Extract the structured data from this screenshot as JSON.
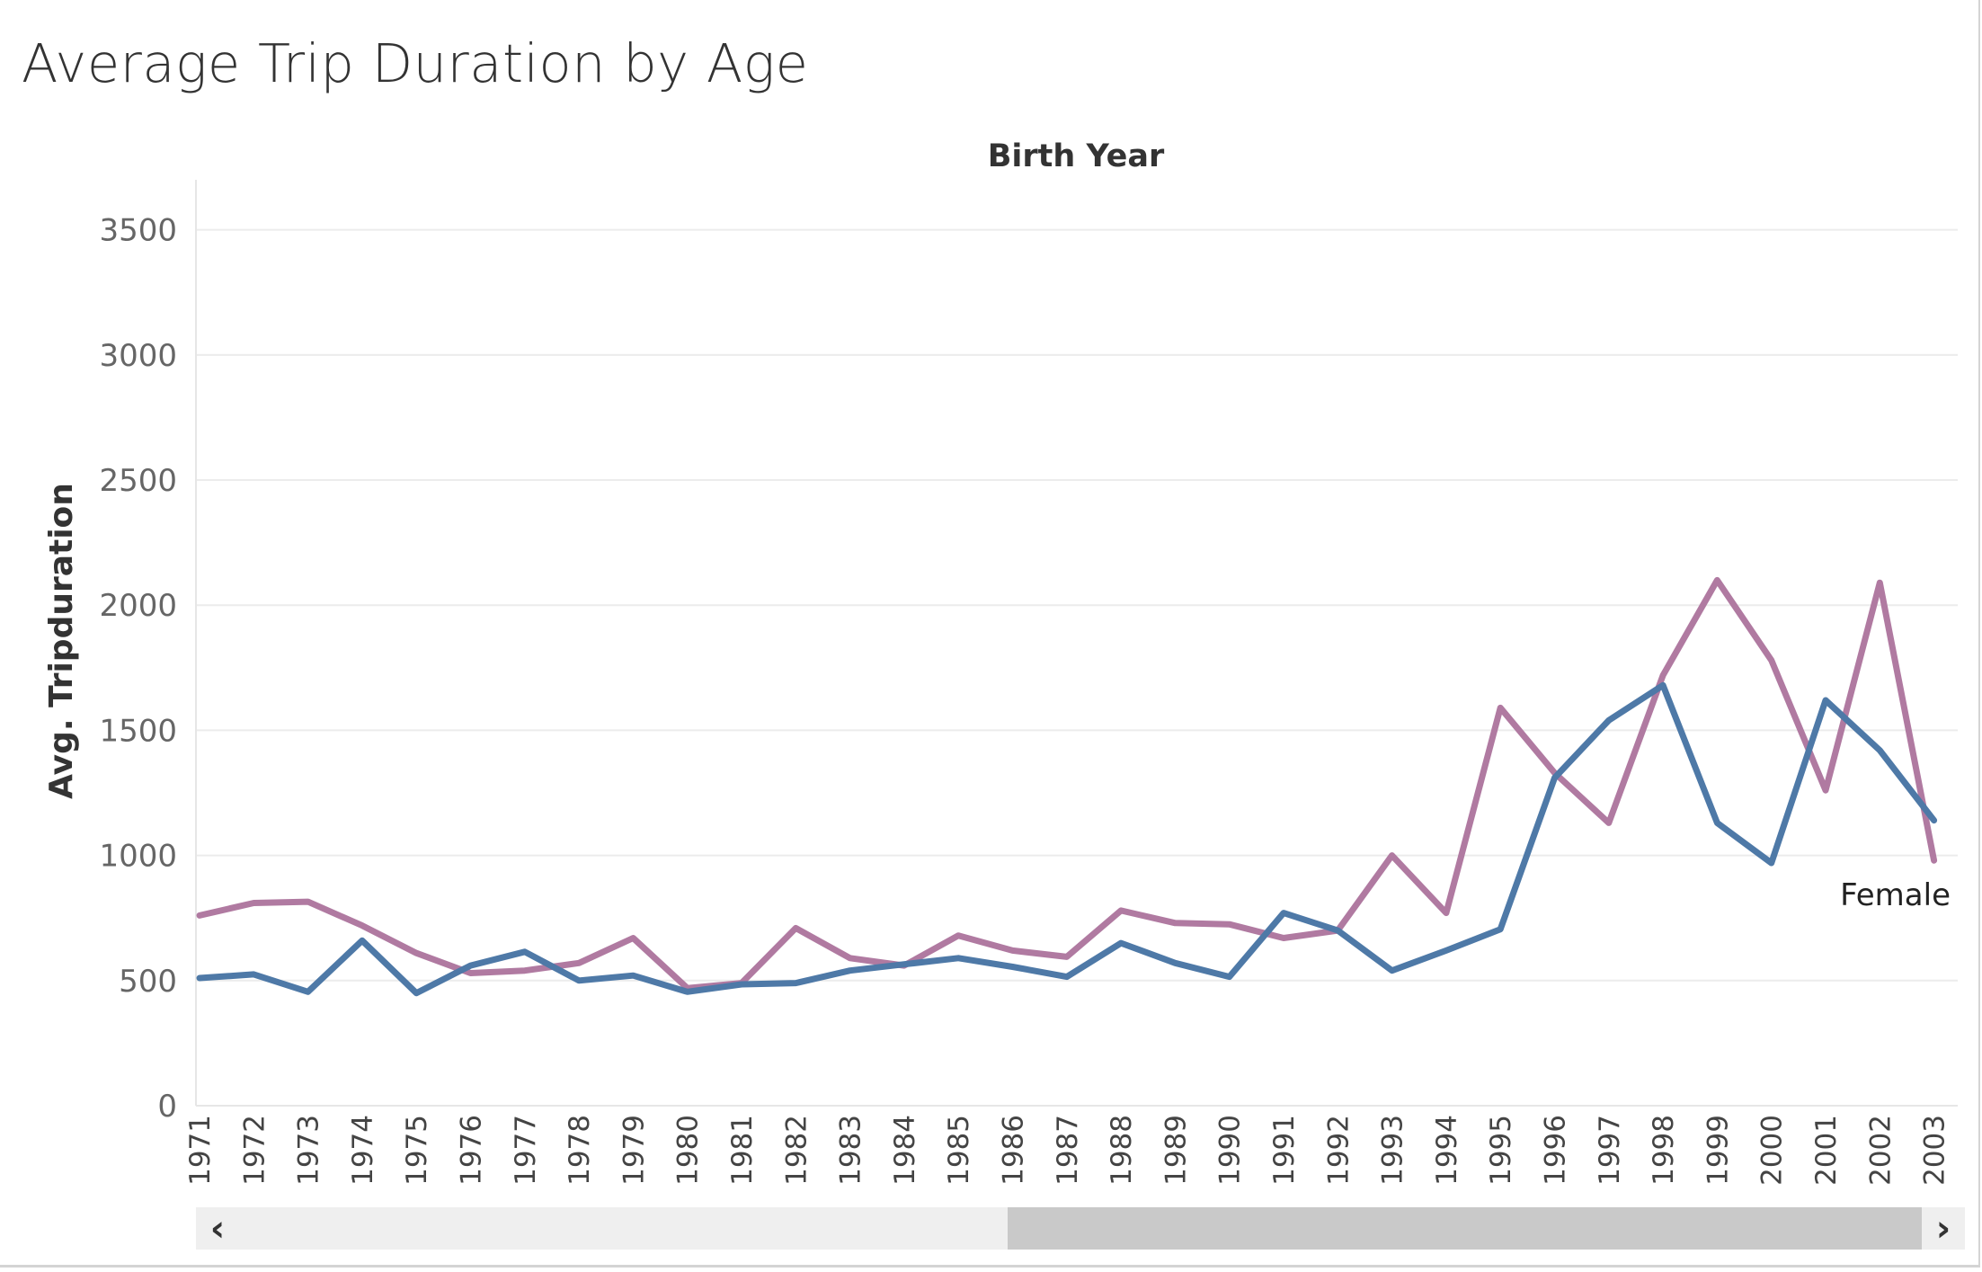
{
  "chart_data": {
    "type": "line",
    "title": "Average Trip Duration by Age",
    "column_header": "Birth Year",
    "ylabel": "Avg. Tripduration",
    "ylim": [
      0,
      3700
    ],
    "yticks": [
      0,
      500,
      1000,
      1500,
      2000,
      2500,
      3000,
      3500
    ],
    "x": [
      "1971",
      "1972",
      "1973",
      "1974",
      "1975",
      "1976",
      "1977",
      "1978",
      "1979",
      "1980",
      "1981",
      "1982",
      "1983",
      "1984",
      "1985",
      "1986",
      "1987",
      "1988",
      "1989",
      "1990",
      "1991",
      "1992",
      "1993",
      "1994",
      "1995",
      "1996",
      "1997",
      "1998",
      "1999",
      "2000",
      "2001",
      "2002",
      "2003"
    ],
    "series": [
      {
        "color": "#b07aa1",
        "values": [
          760,
          810,
          815,
          720,
          610,
          530,
          540,
          570,
          670,
          470,
          490,
          710,
          590,
          560,
          680,
          620,
          595,
          780,
          730,
          725,
          670,
          700,
          1000,
          770,
          1590,
          1330,
          1130,
          1720,
          2100,
          1780,
          1260,
          2090,
          980
        ]
      },
      {
        "color": "#4e79a7",
        "values": [
          510,
          525,
          455,
          660,
          450,
          560,
          615,
          500,
          520,
          455,
          485,
          490,
          540,
          565,
          590,
          555,
          515,
          650,
          570,
          515,
          770,
          700,
          540,
          620,
          705,
          1310,
          1540,
          1680,
          1130,
          970,
          1620,
          1420,
          1140
        ]
      }
    ],
    "annotations": [
      {
        "text": "Female"
      }
    ],
    "grid": true,
    "legend": "none"
  },
  "scrollbar": {
    "left_arrow": "‹",
    "right_arrow": "›"
  }
}
